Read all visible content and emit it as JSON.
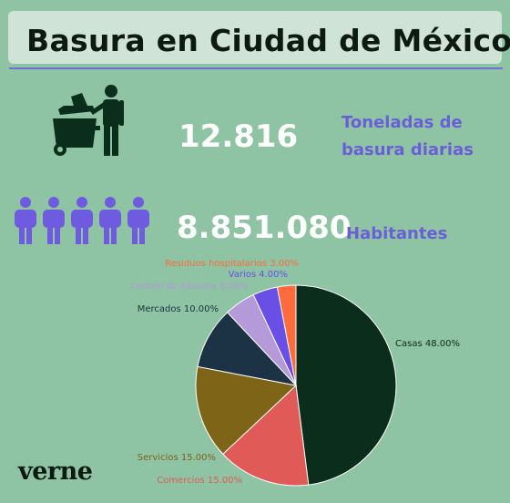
{
  "header": {
    "title": "Basura en Ciudad de México"
  },
  "stats": [
    {
      "value": "12.816",
      "label_line1": "Toneladas de",
      "label_line2": "basura diarias"
    },
    {
      "value": "8.851.080",
      "label_line1": "Habitantes",
      "label_line2": ""
    }
  ],
  "icons": {
    "trash": "person-with-trash-bin-icon",
    "people": "people-group-icon"
  },
  "logo": {
    "text": "verne"
  },
  "colors": {
    "background": "#8ec3a3",
    "stat_number": "#ffffff",
    "stat_label": "#6a5fd6",
    "title_box": "#cfe3d6",
    "icon_dark": "#0b2d1c",
    "icon_people": "#6f5be0"
  },
  "chart_data": {
    "type": "pie",
    "title": "",
    "slices": [
      {
        "label": "Casas 48.00%",
        "value": 48,
        "color": "#0b2d1c",
        "label_color": "#0b2d1c"
      },
      {
        "label": "Comercios 15.00%",
        "value": 15,
        "color": "#e05a58",
        "label_color": "#e05a58"
      },
      {
        "label": "Servicios 15.00%",
        "value": 15,
        "color": "#7d6417",
        "label_color": "#7d6417"
      },
      {
        "label": "Mercados 10.00%",
        "value": 10,
        "color": "#1c3345",
        "label_color": "#1c3345"
      },
      {
        "label": "Central de Abastos 5.00%",
        "value": 5,
        "color": "#b49ad8",
        "label_color": "#b49ad8"
      },
      {
        "label": "Varios 4.00%",
        "value": 4,
        "color": "#6a4fe6",
        "label_color": "#6a4fe6"
      },
      {
        "label": "Residuos hospitalarios 3.00%",
        "value": 3,
        "color": "#ff6b3d",
        "label_color": "#ff6b3d"
      }
    ]
  }
}
